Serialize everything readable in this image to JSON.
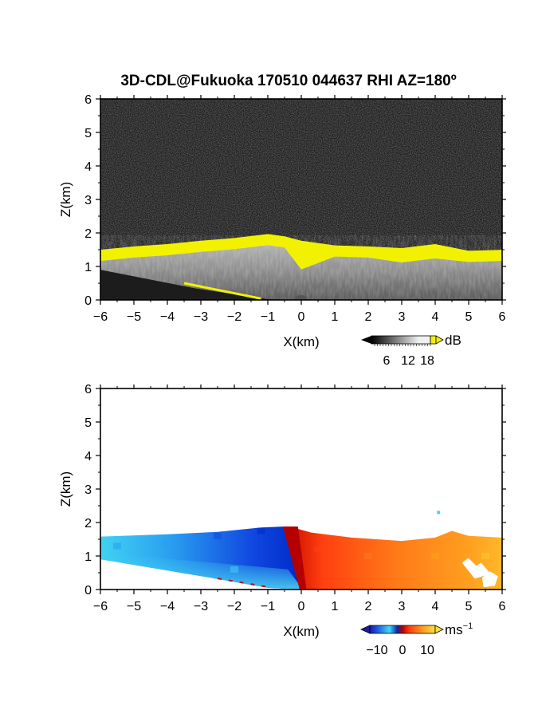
{
  "chart_data": [
    {
      "type": "heatmap",
      "title": "3D-CDL@Fukuoka 170510 044637 RHI AZ=180º",
      "xlabel": "X(km)",
      "ylabel": "Z(km)",
      "xlim": [
        -6,
        6
      ],
      "ylim": [
        0,
        6
      ],
      "xticks": [
        "-6",
        "-5",
        "-4",
        "-3",
        "-2",
        "-1",
        "0",
        "1",
        "2",
        "3",
        "4",
        "5",
        "6"
      ],
      "yticks": [
        "0",
        "1",
        "2",
        "3",
        "4",
        "5",
        "6"
      ],
      "colorbar": {
        "unit": "dB",
        "ticks": [
          "6",
          "12",
          "18"
        ],
        "palette": "grayscale, yellow above 18"
      },
      "aerosol_layer_top_km": [
        [
          -6,
          1.45
        ],
        [
          -5,
          1.55
        ],
        [
          -4,
          1.62
        ],
        [
          -3,
          1.72
        ],
        [
          -2,
          1.8
        ],
        [
          -1,
          1.92
        ],
        [
          -0.5,
          1.85
        ],
        [
          0,
          1.72
        ],
        [
          1,
          1.58
        ],
        [
          2,
          1.55
        ],
        [
          3,
          1.5
        ],
        [
          4,
          1.62
        ],
        [
          5,
          1.42
        ],
        [
          6,
          1.45
        ]
      ],
      "noise_background": "dark grey speckle above the layer"
    },
    {
      "type": "heatmap",
      "xlabel": "X(km)",
      "ylabel": "Z(km)",
      "xlim": [
        -6,
        6
      ],
      "ylim": [
        0,
        6
      ],
      "xticks": [
        "-6",
        "-5",
        "-4",
        "-3",
        "-2",
        "-1",
        "0",
        "1",
        "2",
        "3",
        "4",
        "5",
        "6"
      ],
      "yticks": [
        "0",
        "1",
        "2",
        "3",
        "4",
        "5",
        "6"
      ],
      "colorbar": {
        "unit": "ms",
        "unit_exp": "−1",
        "ticks": [
          "−10",
          "0",
          "10"
        ],
        "range": [
          -12,
          12
        ]
      },
      "velocity_field": [
        {
          "x": -5.5,
          "z": 1.3,
          "v": -7
        },
        {
          "x": -4,
          "z": 1.4,
          "v": -8
        },
        {
          "x": -2.5,
          "z": 1.6,
          "v": -10
        },
        {
          "x": -1.2,
          "z": 1.75,
          "v": -12
        },
        {
          "x": -2,
          "z": 0.6,
          "v": -6
        },
        {
          "x": 0.5,
          "z": 1.2,
          "v": 4
        },
        {
          "x": 2,
          "z": 1.0,
          "v": 6
        },
        {
          "x": 4,
          "z": 1.0,
          "v": 9
        },
        {
          "x": 5.5,
          "z": 1.0,
          "v": 11
        }
      ],
      "isolated_echo": {
        "x": 4.1,
        "z": 2.3,
        "v": -8
      }
    }
  ],
  "colors": {
    "frame": "#000000",
    "layer_saturated": "#f2f200",
    "noise_dark": "#1c1c1c",
    "v_neg_strong": "#0038e0",
    "v_neg_weak": "#3fd2f2",
    "v_zero": "#b40000",
    "v_pos_mid": "#ff5a10",
    "v_pos_strong": "#ffd820"
  }
}
